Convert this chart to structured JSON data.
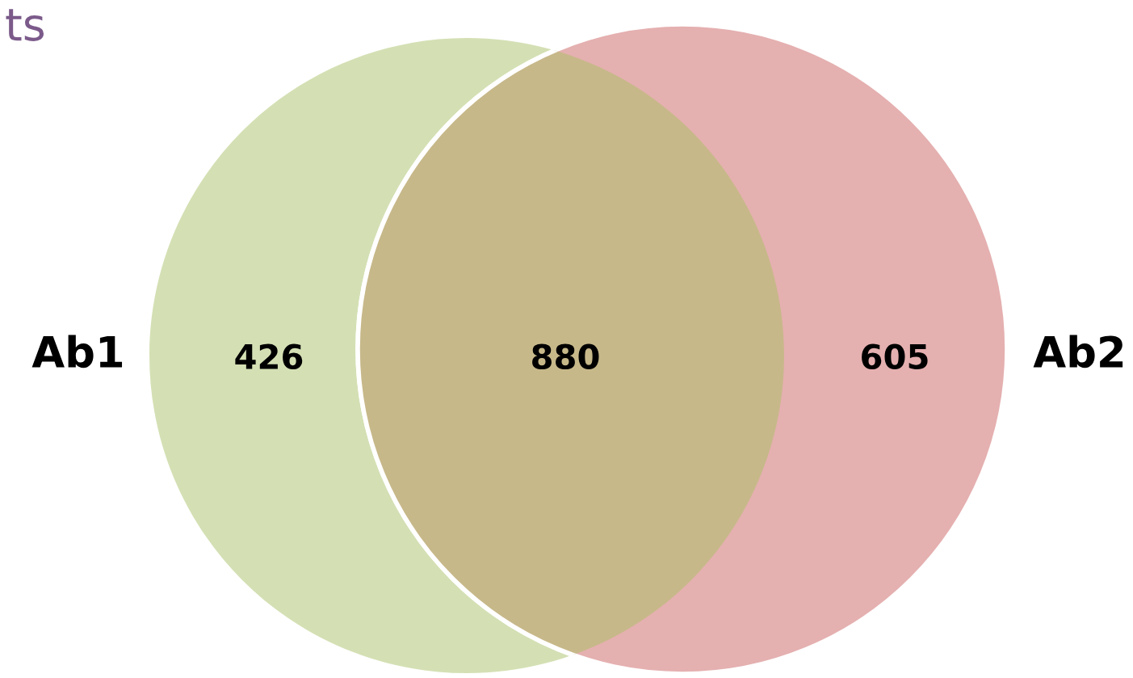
{
  "chart_data": {
    "type": "other",
    "title": "ts",
    "categories": [
      "Ab1",
      null,
      "Ab2"
    ],
    "values": [
      426,
      880,
      605
    ],
    "colors": [
      "#d4e0b4",
      "#c7b88a",
      "#e5b0b0"
    ],
    "data_labels": true
  }
}
